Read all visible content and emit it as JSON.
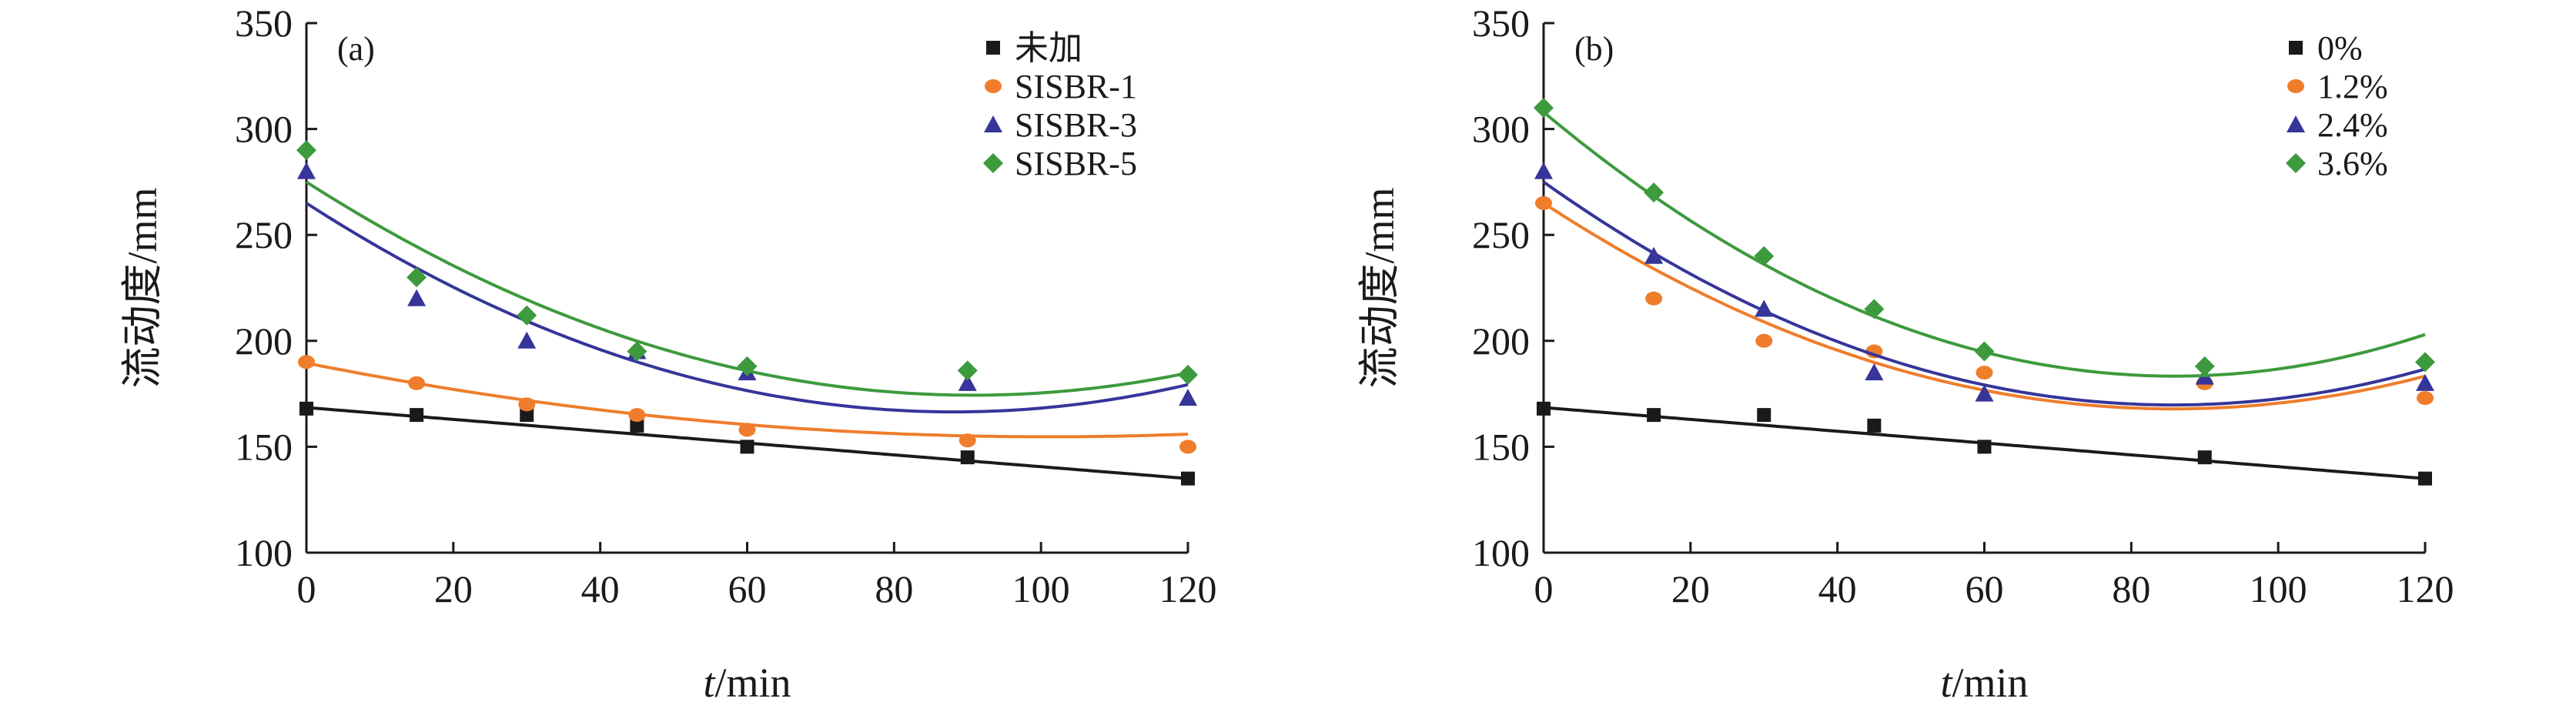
{
  "chart_data": [
    {
      "type": "scatter",
      "panel_label": "(a)",
      "xlabel_italic": "t",
      "xlabel_rest": "/min",
      "ylabel": "流动度/mm",
      "xlim": [
        0,
        120
      ],
      "ylim": [
        100,
        350
      ],
      "xticks": [
        "0",
        "20",
        "40",
        "60",
        "80",
        "100",
        "120"
      ],
      "yticks": [
        "100",
        "150",
        "200",
        "250",
        "300",
        "350"
      ],
      "legend_position": "top-right",
      "series": [
        {
          "name": "未加",
          "color": "#1a1a1a",
          "marker": "square",
          "x": [
            0,
            15,
            30,
            45,
            60,
            90,
            120
          ],
          "y": [
            168,
            165,
            165,
            160,
            150,
            145,
            135
          ],
          "fit": [
            168.5,
            -0.2792,
            0
          ]
        },
        {
          "name": "SISBR-1",
          "color": "#ef7d2c",
          "marker": "circle",
          "x": [
            0,
            15,
            30,
            45,
            60,
            90,
            120
          ],
          "y": [
            190,
            180,
            170,
            165,
            158,
            153,
            150
          ],
          "fit": [
            189.5,
            -0.689,
            0.003411
          ]
        },
        {
          "name": "SISBR-3",
          "color": "#35359a",
          "marker": "triangle",
          "x": [
            0,
            15,
            30,
            45,
            60,
            90,
            120
          ],
          "y": [
            280,
            220,
            200,
            195,
            185,
            180,
            173
          ],
          "fit": [
            265,
            -2.2361,
            0.012685
          ]
        },
        {
          "name": "SISBR-5",
          "color": "#3d9a3d",
          "marker": "diamond",
          "x": [
            0,
            15,
            30,
            45,
            60,
            90,
            120
          ],
          "y": [
            290,
            230,
            212,
            195,
            188,
            186,
            184
          ],
          "fit": [
            275,
            -2.2194,
            0.012234
          ]
        }
      ]
    },
    {
      "type": "scatter",
      "panel_label": "(b)",
      "xlabel_italic": "t",
      "xlabel_rest": "/min",
      "ylabel": "流动度/mm",
      "xlim": [
        0,
        120
      ],
      "ylim": [
        100,
        350
      ],
      "xticks": [
        "0",
        "20",
        "40",
        "60",
        "80",
        "100",
        "120"
      ],
      "yticks": [
        "100",
        "150",
        "200",
        "250",
        "300",
        "350"
      ],
      "legend_position": "top-right",
      "series": [
        {
          "name": "0%",
          "color": "#1a1a1a",
          "marker": "square",
          "x": [
            0,
            15,
            30,
            45,
            60,
            90,
            120
          ],
          "y": [
            168,
            165,
            165,
            160,
            150,
            145,
            135
          ],
          "fit": [
            168.5,
            -0.2792,
            0
          ]
        },
        {
          "name": "1.2%",
          "color": "#ef7d2c",
          "marker": "circle",
          "x": [
            0,
            15,
            30,
            45,
            60,
            90,
            120
          ],
          "y": [
            265,
            220,
            200,
            195,
            185,
            180,
            173
          ],
          "fit": [
            265,
            -2.2639,
            0.013194
          ]
        },
        {
          "name": "2.4%",
          "color": "#35359a",
          "marker": "triangle",
          "x": [
            0,
            15,
            30,
            45,
            60,
            90,
            120
          ],
          "y": [
            280,
            240,
            215,
            185,
            175,
            183,
            180
          ],
          "fit": [
            275,
            -2.4583,
            0.014352
          ]
        },
        {
          "name": "3.6%",
          "color": "#3d9a3d",
          "marker": "diamond",
          "x": [
            0,
            15,
            30,
            45,
            60,
            90,
            120
          ],
          "y": [
            310,
            270,
            240,
            215,
            195,
            188,
            190
          ],
          "fit": [
            308,
            -2.9028,
            0.016898
          ]
        }
      ]
    }
  ]
}
